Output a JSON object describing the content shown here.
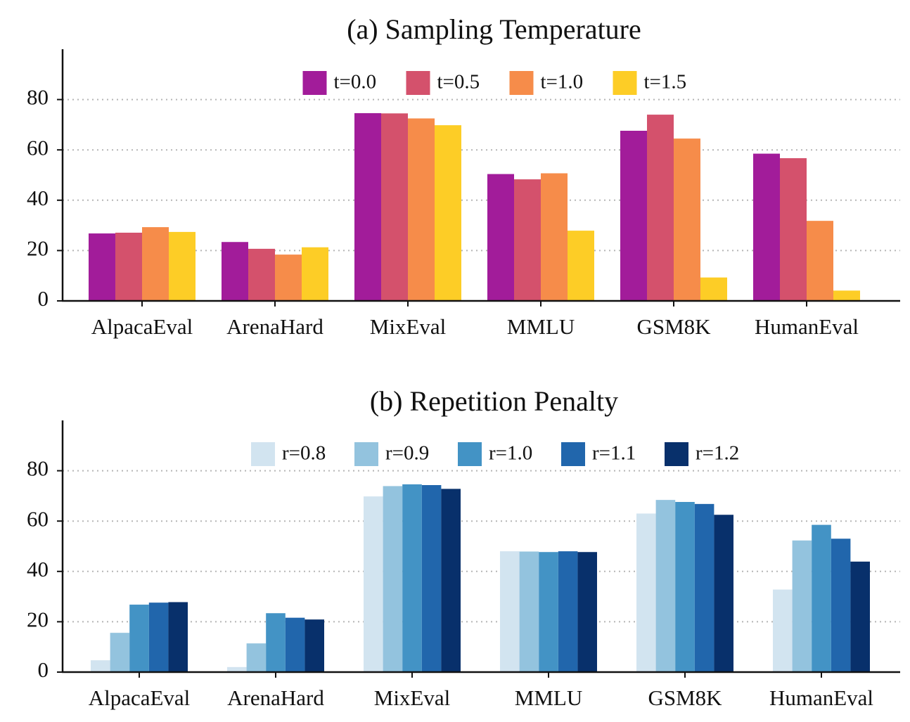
{
  "chart_data": [
    {
      "type": "bar",
      "title": "(a) Sampling Temperature",
      "xlabel": "",
      "ylabel": "",
      "ylim": [
        0,
        100
      ],
      "yticks": [
        0,
        20,
        40,
        60,
        80
      ],
      "grid": "horizontal dotted",
      "legend": "top-center",
      "categories": [
        "AlpacaEval",
        "ArenaHard",
        "MixEval",
        "MMLU",
        "GSM8K",
        "HumanEval"
      ],
      "series": [
        {
          "name": "t=0.0",
          "color": "#a21c9a",
          "values": [
            26.8,
            23.4,
            74.6,
            50.4,
            67.6,
            58.5
          ]
        },
        {
          "name": "t=0.5",
          "color": "#d4516c",
          "values": [
            27.1,
            20.7,
            74.5,
            48.3,
            74.0,
            56.7
          ]
        },
        {
          "name": "t=1.0",
          "color": "#f68c4a",
          "values": [
            29.3,
            18.4,
            72.5,
            50.7,
            64.5,
            31.8
          ]
        },
        {
          "name": "t=1.5",
          "color": "#fdcd26",
          "values": [
            27.4,
            21.3,
            69.8,
            27.9,
            9.3,
            4.1
          ]
        }
      ]
    },
    {
      "type": "bar",
      "title": "(b) Repetition Penalty",
      "xlabel": "",
      "ylabel": "",
      "ylim": [
        0,
        100
      ],
      "yticks": [
        0,
        20,
        40,
        60,
        80
      ],
      "grid": "horizontal dotted",
      "legend": "top-center",
      "categories": [
        "AlpacaEval",
        "ArenaHard",
        "MixEval",
        "MMLU",
        "GSM8K",
        "HumanEval"
      ],
      "series": [
        {
          "name": "r=0.8",
          "color": "#d2e4f0",
          "values": [
            4.7,
            2.0,
            69.8,
            48.0,
            63.0,
            32.8
          ]
        },
        {
          "name": "r=0.9",
          "color": "#93c3de",
          "values": [
            15.6,
            11.4,
            73.9,
            47.9,
            68.4,
            52.3
          ]
        },
        {
          "name": "r=1.0",
          "color": "#4393c5",
          "values": [
            26.8,
            23.4,
            74.6,
            47.7,
            67.6,
            58.5
          ]
        },
        {
          "name": "r=1.1",
          "color": "#2166ac",
          "values": [
            27.6,
            21.6,
            74.3,
            48.0,
            66.8,
            53.0
          ]
        },
        {
          "name": "r=1.2",
          "color": "#08306b",
          "values": [
            27.8,
            20.9,
            72.8,
            47.7,
            62.5,
            43.9
          ]
        }
      ]
    }
  ]
}
